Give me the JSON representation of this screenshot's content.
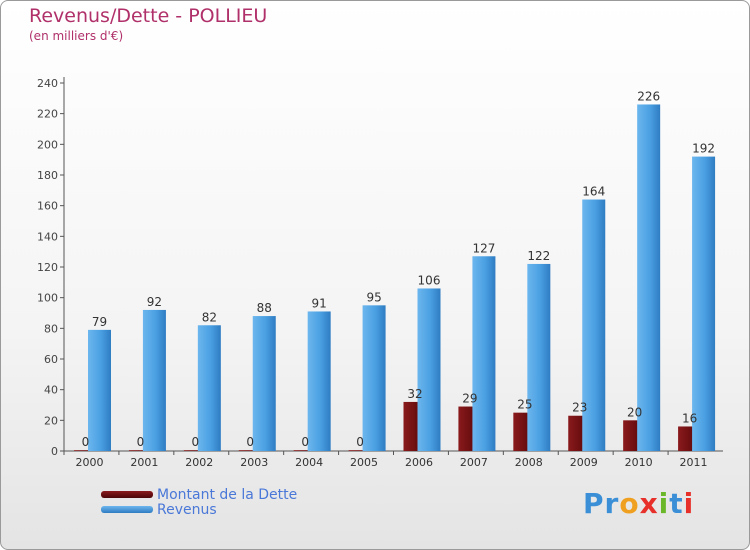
{
  "chart_data": {
    "type": "bar",
    "title": "Revenus/Dette - POLLIEU",
    "subtitle": "(en milliers d'€)",
    "categories": [
      "2000",
      "2001",
      "2002",
      "2003",
      "2004",
      "2005",
      "2006",
      "2007",
      "2008",
      "2009",
      "2010",
      "2011"
    ],
    "series": [
      {
        "name": "Montant de la Dette",
        "color": "#6b0e10",
        "values": [
          0,
          0,
          0,
          0,
          0,
          0,
          32,
          29,
          25,
          23,
          20,
          16
        ]
      },
      {
        "name": "Revenus",
        "color": "#4aa0e2",
        "values": [
          79,
          92,
          82,
          88,
          91,
          95,
          106,
          127,
          122,
          164,
          226,
          192
        ]
      }
    ],
    "ylim": [
      0,
      240
    ],
    "yticks": [
      0,
      20,
      40,
      60,
      80,
      100,
      120,
      140,
      160,
      180,
      200,
      220,
      240
    ],
    "grid": false,
    "legend": "bottom-left"
  },
  "logo": {
    "letters": [
      "P",
      "r",
      "o",
      "x",
      "i",
      "t",
      "i"
    ],
    "colors": [
      "#3a8fd6",
      "#3a8fd6",
      "#f0a020",
      "#e8302a",
      "#6ab82a",
      "#3a8fd6",
      "#e8302a"
    ]
  }
}
